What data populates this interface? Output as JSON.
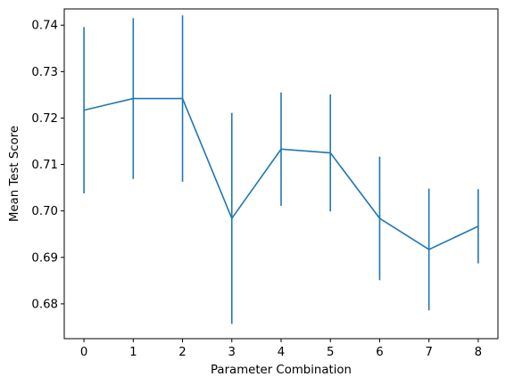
{
  "chart_data": {
    "type": "line",
    "title": "",
    "xlabel": "Parameter Combination",
    "ylabel": "Mean Test Score",
    "x": [
      0,
      1,
      2,
      3,
      4,
      5,
      6,
      7,
      8
    ],
    "series": [
      {
        "values": [
          0.7217,
          0.7242,
          0.7242,
          0.6984,
          0.7133,
          0.7125,
          0.6984,
          0.6917,
          0.6967
        ],
        "error": [
          0.0179,
          0.0173,
          0.0179,
          0.0227,
          0.0122,
          0.0126,
          0.0133,
          0.0131,
          0.008
        ],
        "color": "#1f77b4"
      }
    ],
    "xlim": [
      -0.4,
      8.4
    ],
    "ylim": [
      0.6725,
      0.7435
    ],
    "xticks": [
      0,
      1,
      2,
      3,
      4,
      5,
      6,
      7,
      8
    ],
    "yticks": [
      0.68,
      0.69,
      0.7,
      0.71,
      0.72,
      0.73,
      0.74
    ],
    "ytick_labels": [
      "0.68",
      "0.69",
      "0.70",
      "0.71",
      "0.72",
      "0.73",
      "0.74"
    ],
    "grid": false,
    "legend": "none"
  }
}
